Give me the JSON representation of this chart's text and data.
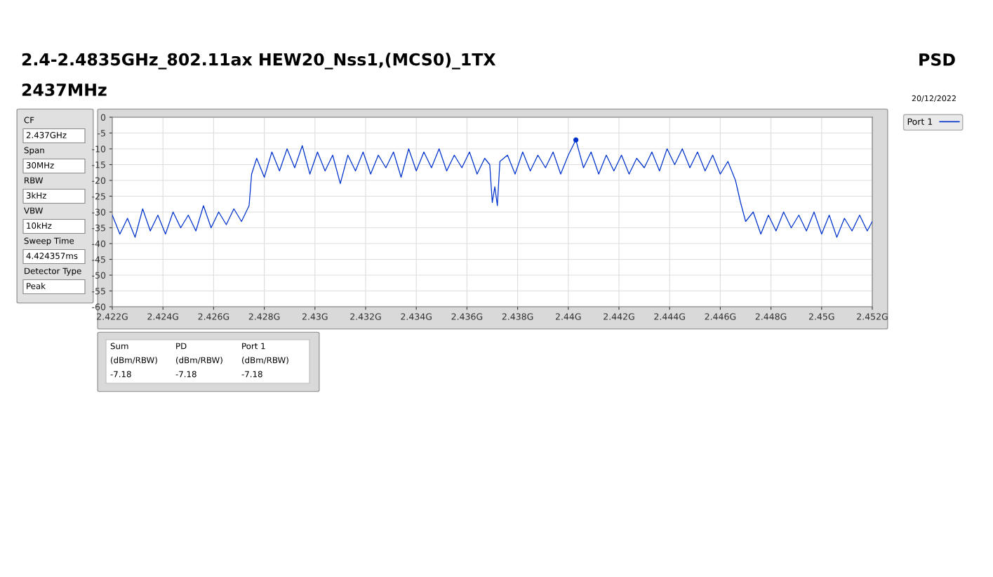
{
  "chart_data": {
    "type": "line",
    "title": "2.4-2.4835GHz_802.11ax HEW20_Nss1,(MCS0)_1TX",
    "subtitle": "2437MHz",
    "annotations": [
      "PSD",
      "20/12/2022",
      "CF",
      "2.437GHz",
      "Span",
      "30MHz",
      "RBW",
      "3kHz",
      "VBW",
      "10kHz",
      "Sweep Time",
      "4.424357ms",
      "Detector Type",
      "Peak",
      "Sum",
      "PD",
      "Port 1",
      "(dBm/RBW)",
      "(dBm/RBW)",
      "(dBm/RBW)",
      "-7.18",
      "-7.18",
      "-7.18"
    ],
    "xlim": [
      2.422,
      2.452
    ],
    "xticks": [
      {
        "value": 2.422,
        "label": "2.422G"
      },
      {
        "value": 2.424,
        "label": "2.424G"
      },
      {
        "value": 2.426,
        "label": "2.426G"
      },
      {
        "value": 2.428,
        "label": "2.428G"
      },
      {
        "value": 2.43,
        "label": "2.43G"
      },
      {
        "value": 2.432,
        "label": "2.432G"
      },
      {
        "value": 2.434,
        "label": "2.434G"
      },
      {
        "value": 2.436,
        "label": "2.436G"
      },
      {
        "value": 2.438,
        "label": "2.438G"
      },
      {
        "value": 2.44,
        "label": "2.44G"
      },
      {
        "value": 2.442,
        "label": "2.442G"
      },
      {
        "value": 2.444,
        "label": "2.444G"
      },
      {
        "value": 2.446,
        "label": "2.446G"
      },
      {
        "value": 2.448,
        "label": "2.448G"
      },
      {
        "value": 2.45,
        "label": "2.45G"
      },
      {
        "value": 2.452,
        "label": "2.452G"
      }
    ],
    "ylim": [
      -60,
      0
    ],
    "yticks": [
      0,
      -5,
      -10,
      -15,
      -20,
      -25,
      -30,
      -35,
      -40,
      -45,
      -50,
      -55,
      -60
    ],
    "grid": true,
    "legend": "top right",
    "series": [
      {
        "name": "Port 1",
        "color": "#0033cc",
        "x": [
          2.422,
          2.4223,
          2.4226,
          2.4229,
          2.4232,
          2.4235,
          2.4238,
          2.4241,
          2.4244,
          2.4247,
          2.425,
          2.4253,
          2.4256,
          2.4259,
          2.4262,
          2.4265,
          2.4268,
          2.4271,
          2.4274,
          2.4275,
          2.4277,
          2.428,
          2.4283,
          2.4286,
          2.4289,
          2.4292,
          2.4295,
          2.4298,
          2.4301,
          2.4304,
          2.4307,
          2.431,
          2.4313,
          2.4316,
          2.4319,
          2.4322,
          2.4325,
          2.4328,
          2.4331,
          2.4334,
          2.4337,
          2.434,
          2.4343,
          2.4346,
          2.4349,
          2.4352,
          2.4355,
          2.4358,
          2.4361,
          2.4364,
          2.4367,
          2.4369,
          2.437,
          2.4371,
          2.4372,
          2.4373,
          2.4376,
          2.4379,
          2.4382,
          2.4385,
          2.4388,
          2.4391,
          2.4394,
          2.4397,
          2.44,
          2.4403,
          2.4406,
          2.4409,
          2.4412,
          2.4415,
          2.4418,
          2.4421,
          2.4424,
          2.4427,
          2.443,
          2.4433,
          2.4436,
          2.4439,
          2.4442,
          2.4445,
          2.4448,
          2.4451,
          2.4454,
          2.4457,
          2.446,
          2.4463,
          2.4466,
          2.4468,
          2.447,
          2.4473,
          2.4476,
          2.4479,
          2.4482,
          2.4485,
          2.4488,
          2.4491,
          2.4494,
          2.4497,
          2.45,
          2.4503,
          2.4506,
          2.4509,
          2.4512,
          2.4515,
          2.4518,
          2.452
        ],
        "values": [
          -31,
          -37,
          -32,
          -38,
          -29,
          -36,
          -31,
          -37,
          -30,
          -35,
          -31,
          -36,
          -28,
          -35,
          -30,
          -34,
          -29,
          -33,
          -28,
          -18,
          -13,
          -19,
          -11,
          -17,
          -10,
          -16,
          -9,
          -18,
          -11,
          -17,
          -12,
          -21,
          -12,
          -17,
          -11,
          -18,
          -12,
          -16,
          -11,
          -19,
          -10,
          -17,
          -11,
          -16,
          -10,
          -17,
          -12,
          -16,
          -11,
          -18,
          -13,
          -15,
          -27,
          -22,
          -28,
          -14,
          -12,
          -18,
          -11,
          -17,
          -12,
          -16,
          -11,
          -18,
          -12,
          -7.18,
          -16,
          -11,
          -18,
          -12,
          -17,
          -12,
          -18,
          -13,
          -16,
          -11,
          -17,
          -10,
          -15,
          -10,
          -16,
          -11,
          -17,
          -12,
          -18,
          -14,
          -20,
          -27,
          -33,
          -30,
          -37,
          -31,
          -36,
          -30,
          -35,
          -31,
          -36,
          -30,
          -37,
          -31,
          -38,
          -32,
          -36,
          -31,
          -36,
          -33
        ]
      },
      {
        "type": "scatter",
        "color": "#0033cc",
        "marker": "circle",
        "x": [
          2.4403
        ],
        "values": [
          -7.18
        ]
      }
    ]
  }
}
